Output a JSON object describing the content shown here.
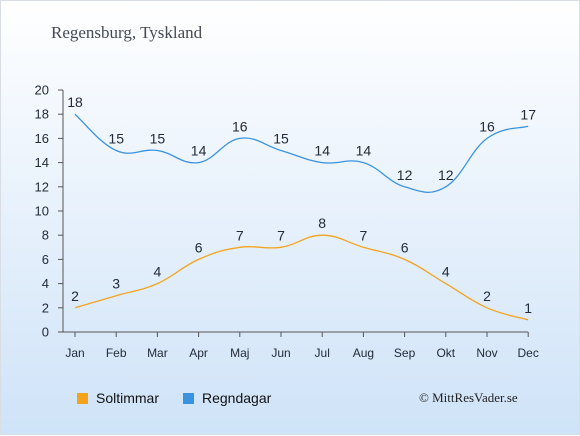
{
  "page": {
    "title": "Regensburg, Tyskland",
    "copyright": "© MittResVader.se"
  },
  "colors": {
    "sun": "#f4a31c",
    "rain": "#3a93e0",
    "axis": "#555555",
    "text": "#222b38"
  },
  "chart_data": {
    "type": "line",
    "categories": [
      "Jan",
      "Feb",
      "Mar",
      "Apr",
      "Maj",
      "Jun",
      "Jul",
      "Aug",
      "Sep",
      "Okt",
      "Nov",
      "Dec"
    ],
    "series": [
      {
        "name": "Soltimmar",
        "color": "#f4a31c",
        "values": [
          2,
          3,
          4,
          6,
          7,
          7,
          8,
          7,
          6,
          4,
          2,
          1
        ]
      },
      {
        "name": "Regndagar",
        "color": "#3a93e0",
        "values": [
          18,
          15,
          15,
          14,
          16,
          15,
          14,
          14,
          12,
          12,
          16,
          17
        ]
      }
    ],
    "yticks": [
      0,
      2,
      4,
      6,
      8,
      10,
      12,
      14,
      16,
      18,
      20
    ],
    "ylim": [
      0,
      20
    ],
    "grid": false,
    "legend": "bottom-left",
    "data_labels": true
  }
}
